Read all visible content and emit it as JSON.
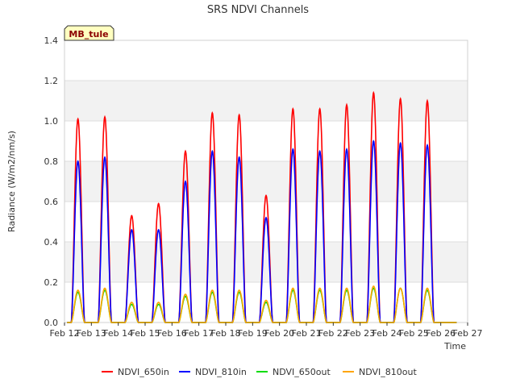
{
  "chart_data": {
    "type": "line",
    "title": "SRS NDVI Channels",
    "xlabel": "Time",
    "ylabel": "Radiance (W/m2/nm/s)",
    "site_label": "MB_tule",
    "ylim": [
      0,
      1.4
    ],
    "xlim": [
      12,
      27
    ],
    "y_ticks": [
      "0.0",
      "0.2",
      "0.4",
      "0.6",
      "0.8",
      "1.0",
      "1.2",
      "1.4"
    ],
    "x_ticks": [
      "Feb 12",
      "Feb 13",
      "Feb 14",
      "Feb 15",
      "Feb 16",
      "Feb 17",
      "Feb 18",
      "Feb 19",
      "Feb 20",
      "Feb 21",
      "Feb 22",
      "Feb 23",
      "Feb 24",
      "Feb 25",
      "Feb 26",
      "Feb 27"
    ],
    "day_peaks": {
      "days": [
        12.5,
        13.5,
        14.5,
        15.5,
        16.5,
        17.5,
        18.5,
        19.5,
        20.5,
        21.5,
        22.5,
        23.5,
        24.5,
        25.5
      ],
      "NDVI_650in": [
        1.01,
        1.02,
        0.53,
        0.59,
        0.85,
        1.04,
        1.03,
        0.63,
        1.06,
        1.06,
        1.08,
        1.14,
        1.11,
        1.1
      ],
      "NDVI_810in": [
        0.8,
        0.82,
        0.46,
        0.46,
        0.7,
        0.85,
        0.82,
        0.52,
        0.86,
        0.85,
        0.86,
        0.9,
        0.89,
        0.88
      ],
      "NDVI_650out": [
        0.15,
        0.16,
        0.09,
        0.09,
        0.13,
        0.15,
        0.15,
        0.1,
        0.16,
        0.16,
        0.16,
        0.17,
        0.17,
        0.16
      ],
      "NDVI_810out": [
        0.16,
        0.17,
        0.1,
        0.1,
        0.14,
        0.16,
        0.16,
        0.11,
        0.17,
        0.17,
        0.17,
        0.18,
        0.17,
        0.17
      ]
    },
    "series": [
      {
        "name": "NDVI_650in",
        "color": "#ff0000",
        "key": "NDVI_650in"
      },
      {
        "name": "NDVI_810in",
        "color": "#0000ff",
        "key": "NDVI_810in"
      },
      {
        "name": "NDVI_650out",
        "color": "#00dd00",
        "key": "NDVI_650out"
      },
      {
        "name": "NDVI_810out",
        "color": "#ffa500",
        "key": "NDVI_810out"
      }
    ],
    "legend_position": "bottom"
  }
}
